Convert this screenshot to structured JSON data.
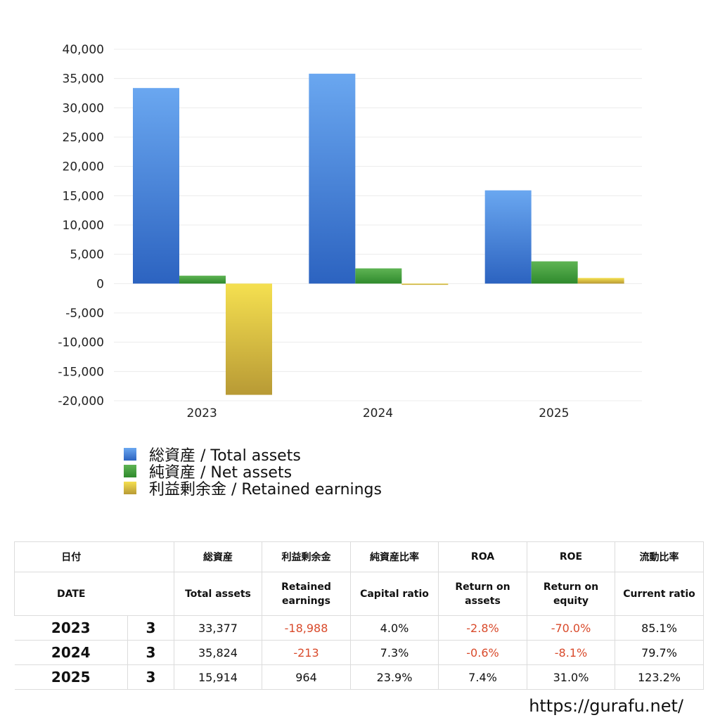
{
  "chart_data": {
    "type": "bar",
    "categories": [
      "2023",
      "2024",
      "2025"
    ],
    "series": [
      {
        "name": "総資産 / Total assets",
        "values": [
          33377,
          35824,
          15914
        ],
        "color": "#3a78d6"
      },
      {
        "name": "純資産 / Net assets",
        "values": [
          1350,
          2600,
          3800
        ],
        "color": "#3d9a3a"
      },
      {
        "name": "利益剰余金 / Retained earnings",
        "values": [
          -18988,
          -213,
          964
        ],
        "color": "#d8c040"
      }
    ],
    "y_ticks": [
      "40,000",
      "35,000",
      "30,000",
      "25,000",
      "20,000",
      "15,000",
      "10,000",
      "5,000",
      "0",
      "-5,000",
      "-10,000",
      "-15,000",
      "-20,000"
    ],
    "ylim": [
      -20000,
      40000
    ],
    "grid": true,
    "legend_position": "bottom-left"
  },
  "table": {
    "header_jp": [
      "日付",
      "",
      "総資産",
      "利益剰余金",
      "純資産比率",
      "ROA",
      "ROE",
      "流動比率"
    ],
    "header_en": [
      "DATE",
      "",
      "Total assets",
      "Retained earnings",
      "Capital ratio",
      "Return on assets",
      "Return on equity",
      "Current ratio"
    ],
    "rows": [
      {
        "year": "2023",
        "month": "3",
        "total_assets": "33,377",
        "retained": "-18,988",
        "capital_ratio": "4.0%",
        "roa": "-2.8%",
        "roe": "-70.0%",
        "current_ratio": "85.1%"
      },
      {
        "year": "2024",
        "month": "3",
        "total_assets": "35,824",
        "retained": "-213",
        "capital_ratio": "7.3%",
        "roa": "-0.6%",
        "roe": "-8.1%",
        "current_ratio": "79.7%"
      },
      {
        "year": "2025",
        "month": "3",
        "total_assets": "15,914",
        "retained": "964",
        "capital_ratio": "23.9%",
        "roa": "7.4%",
        "roe": "31.0%",
        "current_ratio": "123.2%"
      }
    ]
  },
  "source_url": "https://gurafu.net/"
}
